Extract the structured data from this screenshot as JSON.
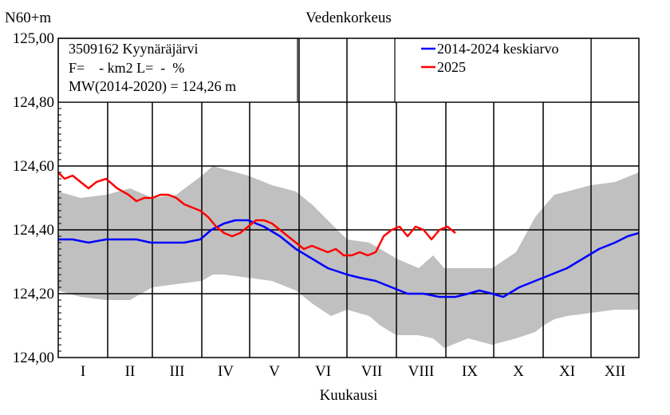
{
  "chart_data": {
    "type": "line",
    "title": "Vedenkorkeus",
    "ylabel": "N60+m",
    "xlabel": "Kuukausi",
    "ylim": [
      124.0,
      125.0
    ],
    "yticks": [
      124.0,
      124.2,
      124.4,
      124.6,
      124.8,
      125.0
    ],
    "ytick_labels": [
      "124,00",
      "124,20",
      "124,40",
      "124,60",
      "124,80",
      "125,00"
    ],
    "months": [
      "I",
      "II",
      "III",
      "IV",
      "V",
      "VI",
      "VII",
      "VIII",
      "IX",
      "X",
      "XI",
      "XII"
    ],
    "grid": true,
    "legend_position": "top-right",
    "info_lines": [
      "3509162 Kyynäräjärvi",
      "F=    - km2 L=  -  %",
      "MW(2014-2020) = 124,26 m"
    ],
    "band": {
      "x": [
        1,
        15,
        31,
        46,
        60,
        75,
        91,
        98,
        105,
        120,
        135,
        150,
        160,
        172,
        182,
        196,
        203,
        213,
        227,
        236,
        243,
        258,
        273,
        288,
        300,
        305,
        312,
        320,
        335,
        350,
        365
      ],
      "upper": [
        124.52,
        124.5,
        124.51,
        124.53,
        124.5,
        124.51,
        124.57,
        124.6,
        124.59,
        124.57,
        124.54,
        124.52,
        124.48,
        124.42,
        124.37,
        124.36,
        124.34,
        124.31,
        124.28,
        124.32,
        124.28,
        124.28,
        124.28,
        124.33,
        124.44,
        124.47,
        124.51,
        124.52,
        124.54,
        124.55,
        124.58
      ],
      "lower": [
        124.21,
        124.19,
        124.18,
        124.18,
        124.22,
        124.23,
        124.24,
        124.26,
        124.26,
        124.25,
        124.24,
        124.21,
        124.17,
        124.13,
        124.15,
        124.13,
        124.1,
        124.07,
        124.07,
        124.06,
        124.03,
        124.06,
        124.04,
        124.06,
        124.08,
        124.1,
        124.12,
        124.13,
        124.14,
        124.15,
        124.15
      ]
    },
    "series": [
      {
        "name": "2014-2024 keskiarvo",
        "color": "#0000ff",
        "x": [
          1,
          10,
          20,
          31,
          40,
          50,
          59,
          70,
          80,
          90,
          97,
          105,
          112,
          120,
          130,
          140,
          150,
          160,
          170,
          182,
          190,
          200,
          210,
          220,
          230,
          240,
          250,
          258,
          265,
          273,
          280,
          290,
          300,
          310,
          320,
          330,
          340,
          350,
          358,
          365
        ],
        "y": [
          124.37,
          124.37,
          124.36,
          124.37,
          124.37,
          124.37,
          124.36,
          124.36,
          124.36,
          124.37,
          124.4,
          124.42,
          124.43,
          124.43,
          124.41,
          124.38,
          124.34,
          124.31,
          124.28,
          124.26,
          124.25,
          124.24,
          124.22,
          124.2,
          124.2,
          124.19,
          124.19,
          124.2,
          124.21,
          124.2,
          124.19,
          124.22,
          124.24,
          124.26,
          124.28,
          124.31,
          124.34,
          124.36,
          124.38,
          124.39
        ]
      },
      {
        "name": "2025",
        "color": "#ff0000",
        "x": [
          1,
          5,
          10,
          15,
          20,
          25,
          31,
          38,
          45,
          50,
          55,
          60,
          65,
          70,
          75,
          80,
          85,
          90,
          95,
          100,
          105,
          110,
          115,
          120,
          125,
          130,
          135,
          140,
          145,
          150,
          155,
          160,
          165,
          170,
          175,
          180,
          185,
          190,
          195,
          200,
          205,
          210,
          215,
          220,
          225,
          230,
          235,
          240,
          245,
          250
        ],
        "y": [
          124.58,
          124.56,
          124.57,
          124.55,
          124.53,
          124.55,
          124.56,
          124.53,
          124.51,
          124.49,
          124.5,
          124.5,
          124.51,
          124.51,
          124.5,
          124.48,
          124.47,
          124.46,
          124.44,
          124.41,
          124.39,
          124.38,
          124.39,
          124.41,
          124.43,
          124.43,
          124.42,
          124.4,
          124.38,
          124.36,
          124.34,
          124.35,
          124.34,
          124.33,
          124.34,
          124.32,
          124.32,
          124.33,
          124.32,
          124.33,
          124.38,
          124.4,
          124.41,
          124.38,
          124.41,
          124.4,
          124.37,
          124.4,
          124.41,
          124.39
        ]
      }
    ]
  }
}
